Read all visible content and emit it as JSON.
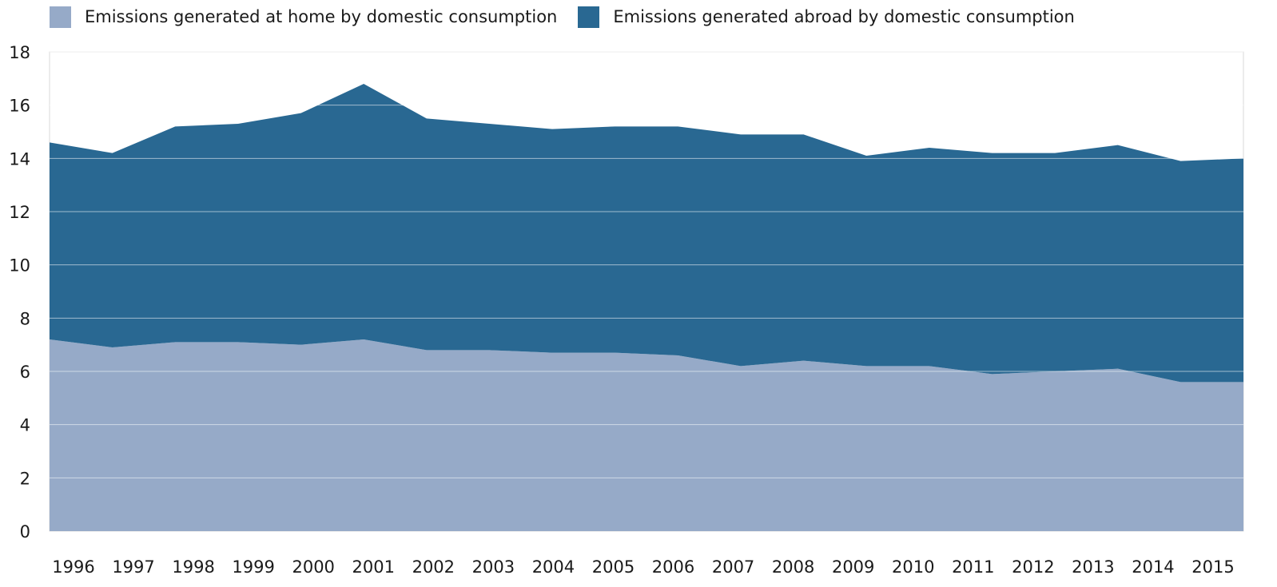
{
  "legend": {
    "items": [
      {
        "label": "Emissions generated at home by domestic consumption",
        "color": "#96aac8"
      },
      {
        "label": "Emissions generated abroad by domestic consumption",
        "color": "#296892"
      }
    ]
  },
  "chart_data": {
    "type": "area",
    "stacked": true,
    "title": "",
    "xlabel": "",
    "ylabel": "",
    "x": [
      "1996",
      "1997",
      "1998",
      "1999",
      "2000",
      "2001",
      "2002",
      "2003",
      "2004",
      "2005",
      "2006",
      "2007",
      "2008",
      "2009",
      "2010",
      "2011",
      "2012",
      "2013",
      "2014",
      "2015"
    ],
    "ylim": [
      0,
      18
    ],
    "yticks": [
      0,
      2,
      4,
      6,
      8,
      10,
      12,
      14,
      16,
      18
    ],
    "grid": true,
    "legend_position": "top-left",
    "series": [
      {
        "name": "Emissions generated at home by domestic consumption",
        "color": "#96aac8",
        "values": [
          7.2,
          6.9,
          7.1,
          7.1,
          7.0,
          7.2,
          6.8,
          6.8,
          6.7,
          6.7,
          6.6,
          6.2,
          6.4,
          6.2,
          6.2,
          5.9,
          6.0,
          6.1,
          5.6,
          5.6
        ]
      },
      {
        "name": "Emissions generated abroad by domestic consumption",
        "color": "#296892",
        "values": [
          7.4,
          7.3,
          8.1,
          8.2,
          8.7,
          9.6,
          8.7,
          8.5,
          8.4,
          8.5,
          8.6,
          8.7,
          8.5,
          7.9,
          8.2,
          8.3,
          8.2,
          8.4,
          8.3,
          8.4
        ]
      }
    ]
  }
}
